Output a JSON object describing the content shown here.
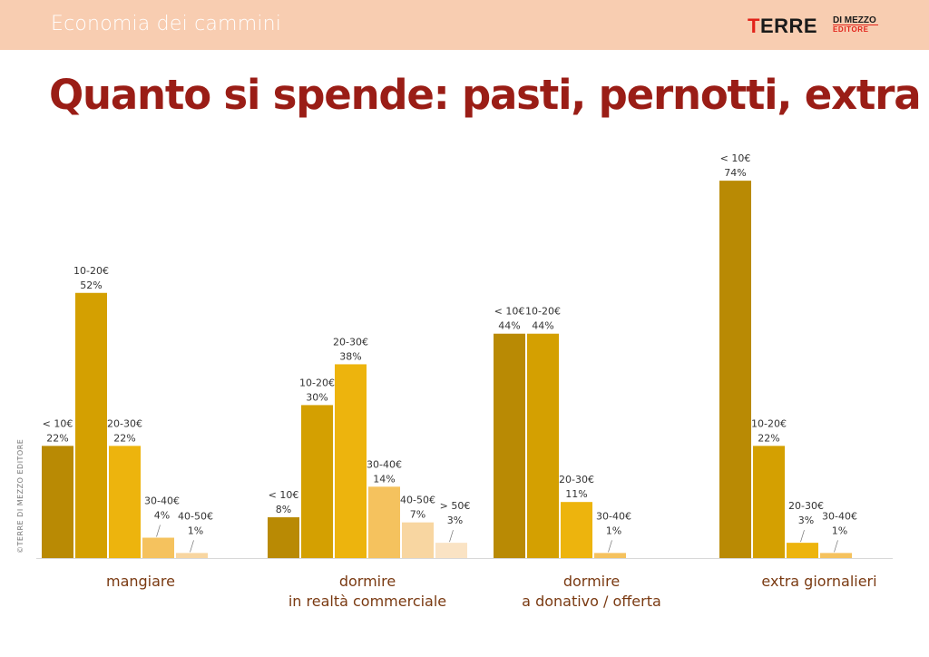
{
  "header": {
    "section": "Economia dei cammini",
    "logo_main_left": "T",
    "logo_main_rest": "ERRE",
    "logo_sub1": "DI MEZZO",
    "logo_sub2": "EDITORE"
  },
  "title": "Quanto si spende: pasti, pernotti, extra",
  "credit": "©TERRE DI MEZZO EDITORE",
  "colors": {
    "b1": "#b98a04",
    "b2": "#d4a001",
    "b3": "#edb40d",
    "b4": "#f5c25e",
    "b5": "#f8d6a1",
    "b6": "#fae3c4",
    "header_bg": "#f8cdb1",
    "title": "#9a1d16"
  },
  "chart_data": {
    "type": "bar",
    "ylim": [
      0,
      80
    ],
    "groups": [
      {
        "name": [
          "mangiare"
        ],
        "bars": [
          {
            "label": "< 10€",
            "value": 22,
            "pct": "22%"
          },
          {
            "label": "10-20€",
            "value": 52,
            "pct": "52%"
          },
          {
            "label": "20-30€",
            "value": 22,
            "pct": "22%"
          },
          {
            "label": "30-40€",
            "value": 4,
            "pct": "4%"
          },
          {
            "label": "40-50€",
            "value": 1,
            "pct": "1%"
          }
        ]
      },
      {
        "name": [
          "dormire",
          "in realtà commerciale"
        ],
        "bars": [
          {
            "label": "< 10€",
            "value": 8,
            "pct": "8%"
          },
          {
            "label": "10-20€",
            "value": 30,
            "pct": "30%"
          },
          {
            "label": "20-30€",
            "value": 38,
            "pct": "38%"
          },
          {
            "label": "30-40€",
            "value": 14,
            "pct": "14%"
          },
          {
            "label": "40-50€",
            "value": 7,
            "pct": "7%"
          },
          {
            "label": "> 50€",
            "value": 3,
            "pct": "3%"
          }
        ]
      },
      {
        "name": [
          "dormire",
          "a donativo / offerta"
        ],
        "bars": [
          {
            "label": "< 10€",
            "value": 44,
            "pct": "44%"
          },
          {
            "label": "10-20€",
            "value": 44,
            "pct": "44%"
          },
          {
            "label": "20-30€",
            "value": 11,
            "pct": "11%"
          },
          {
            "label": "30-40€",
            "value": 1,
            "pct": "1%"
          }
        ]
      },
      {
        "name": [
          "extra giornalieri"
        ],
        "bars": [
          {
            "label": "< 10€",
            "value": 74,
            "pct": "74%"
          },
          {
            "label": "10-20€",
            "value": 22,
            "pct": "22%"
          },
          {
            "label": "20-30€",
            "value": 3,
            "pct": "3%"
          },
          {
            "label": "30-40€",
            "value": 1,
            "pct": "1%"
          }
        ]
      }
    ]
  }
}
